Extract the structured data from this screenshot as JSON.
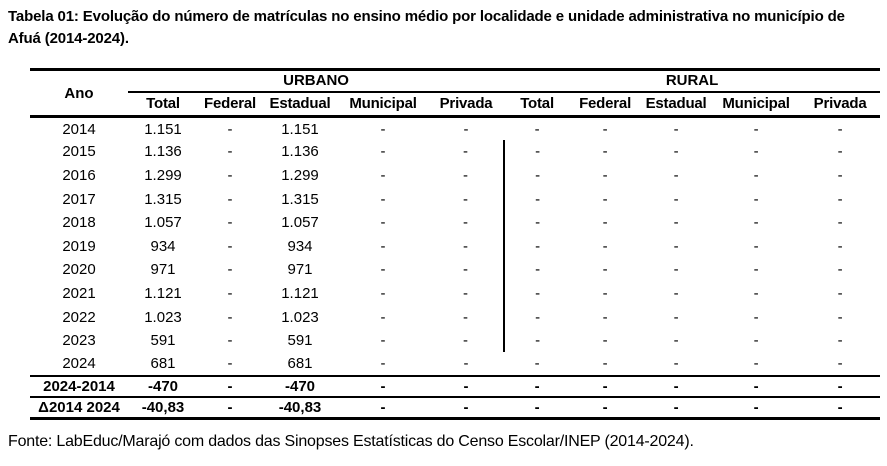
{
  "title": "Tabela 01: Evolução do número de matrículas no ensino médio por localidade e unidade administrativa no município de Afuá (2014-2024).",
  "table": {
    "year_header": "Ano",
    "groups": [
      {
        "label": "URBANO",
        "columns": [
          "Total",
          "Federal",
          "Estadual",
          "Municipal",
          "Privada"
        ]
      },
      {
        "label": "RURAL",
        "columns": [
          "Total",
          "Federal",
          "Estadual",
          "Municipal",
          "Privada"
        ]
      }
    ],
    "rows": [
      {
        "label": "2014",
        "values": [
          "1.151",
          "-",
          "1.151",
          "-",
          "-",
          "-",
          "-",
          "-",
          "-",
          "-"
        ]
      },
      {
        "label": "2015",
        "values": [
          "1.136",
          "-",
          "1.136",
          "-",
          "-",
          "-",
          "-",
          "-",
          "-",
          "-"
        ]
      },
      {
        "label": "2016",
        "values": [
          "1.299",
          "-",
          "1.299",
          "-",
          "-",
          "-",
          "-",
          "-",
          "-",
          "-"
        ]
      },
      {
        "label": "2017",
        "values": [
          "1.315",
          "-",
          "1.315",
          "-",
          "-",
          "-",
          "-",
          "-",
          "-",
          "-"
        ]
      },
      {
        "label": "2018",
        "values": [
          "1.057",
          "-",
          "1.057",
          "-",
          "-",
          "-",
          "-",
          "-",
          "-",
          "-"
        ]
      },
      {
        "label": "2019",
        "values": [
          "934",
          "-",
          "934",
          "-",
          "-",
          "-",
          "-",
          "-",
          "-",
          "-"
        ]
      },
      {
        "label": "2020",
        "values": [
          "971",
          "-",
          "971",
          "-",
          "-",
          "-",
          "-",
          "-",
          "-",
          "-"
        ]
      },
      {
        "label": "2021",
        "values": [
          "1.121",
          "-",
          "1.121",
          "-",
          "-",
          "-",
          "-",
          "-",
          "-",
          "-"
        ]
      },
      {
        "label": "2022",
        "values": [
          "1.023",
          "-",
          "1.023",
          "-",
          "-",
          "-",
          "-",
          "-",
          "-",
          "-"
        ]
      },
      {
        "label": "2023",
        "values": [
          "591",
          "-",
          "591",
          "-",
          "-",
          "-",
          "-",
          "-",
          "-",
          "-"
        ]
      },
      {
        "label": "2024",
        "values": [
          "681",
          "-",
          "681",
          "-",
          "-",
          "-",
          "-",
          "-",
          "-",
          "-"
        ]
      },
      {
        "label": "2024-2014",
        "values": [
          "-470",
          "-",
          "-470",
          "-",
          "-",
          "-",
          "-",
          "-",
          "-",
          "-"
        ],
        "summary": true
      },
      {
        "label": "Δ2014 2024",
        "values": [
          "-40,83",
          "-",
          "-40,83",
          "-",
          "-",
          "-",
          "-",
          "-",
          "-",
          "-"
        ],
        "summary": true
      }
    ],
    "divider": {
      "column_index": 5,
      "from_row": 1,
      "to_row": 9
    }
  },
  "source": "Fonte: LabEduc/Marajó com dados das Sinopses Estatísticas do Censo Escolar/INEP (2014-2024)."
}
